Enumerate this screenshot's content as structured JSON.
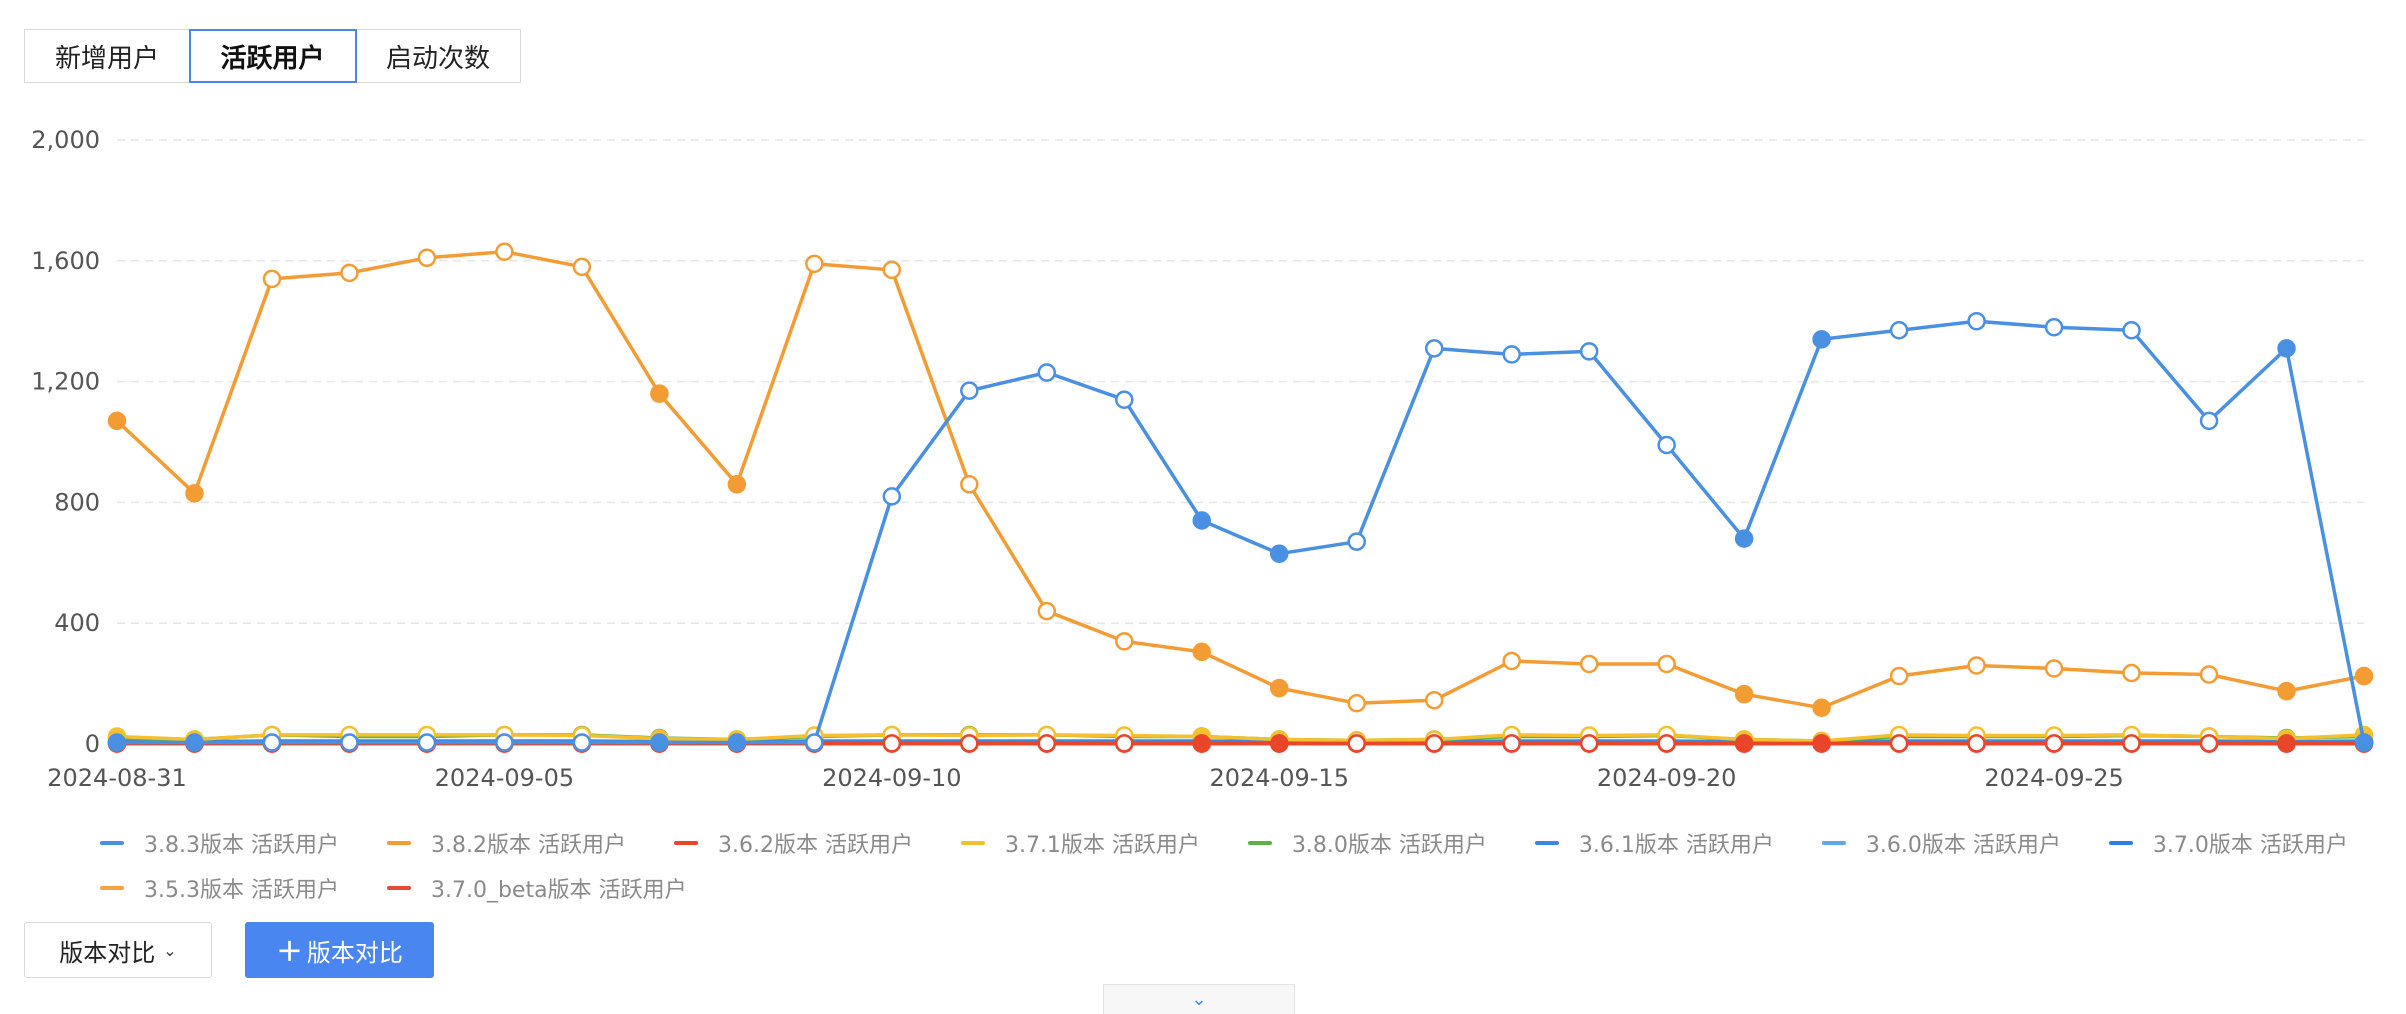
{
  "tabs": [
    {
      "label": "新增用户",
      "active": false
    },
    {
      "label": "活跃用户",
      "active": true
    },
    {
      "label": "启动次数",
      "active": false
    }
  ],
  "chart_data": {
    "type": "line",
    "ylim": [
      0,
      2000
    ],
    "yticks": [
      0,
      400,
      800,
      1200,
      1600,
      2000
    ],
    "ytick_labels": [
      "0",
      "400",
      "800",
      "1,200",
      "1,600",
      "2,000"
    ],
    "xtick_labels": [
      "2024-08-31",
      "2024-09-05",
      "2024-09-10",
      "2024-09-15",
      "2024-09-20",
      "2024-09-25"
    ],
    "xtick_indices": [
      0,
      5,
      10,
      15,
      20,
      25
    ],
    "grid": true,
    "legend_position": "bottom",
    "x": [
      "2024-08-31",
      "2024-09-01",
      "2024-09-02",
      "2024-09-03",
      "2024-09-04",
      "2024-09-05",
      "2024-09-06",
      "2024-09-07",
      "2024-09-08",
      "2024-09-09",
      "2024-09-10",
      "2024-09-11",
      "2024-09-12",
      "2024-09-13",
      "2024-09-14",
      "2024-09-15",
      "2024-09-16",
      "2024-09-17",
      "2024-09-18",
      "2024-09-19",
      "2024-09-20",
      "2024-09-21",
      "2024-09-22",
      "2024-09-23",
      "2024-09-24",
      "2024-09-25",
      "2024-09-26",
      "2024-09-27",
      "2024-09-28",
      "2024-09-29"
    ],
    "weekend_indices": [
      0,
      1,
      7,
      8,
      14,
      15,
      21,
      22,
      28,
      29
    ],
    "series": [
      {
        "name": "3.8.3版本 活跃用户",
        "color": "#4a90e2",
        "values": [
          5,
          5,
          5,
          5,
          5,
          5,
          5,
          5,
          5,
          5,
          820,
          1170,
          1230,
          1140,
          740,
          630,
          670,
          1310,
          1290,
          1300,
          990,
          680,
          1340,
          1370,
          1400,
          1380,
          1370,
          1070,
          1310,
          5
        ]
      },
      {
        "name": "3.8.2版本 活跃用户",
        "color": "#f39c34",
        "values": [
          1070,
          830,
          1540,
          1560,
          1610,
          1630,
          1580,
          1160,
          860,
          1590,
          1570,
          860,
          440,
          340,
          305,
          185,
          135,
          145,
          275,
          265,
          265,
          165,
          120,
          225,
          260,
          250,
          235,
          230,
          175,
          225
        ]
      },
      {
        "name": "3.6.2版本 活跃用户",
        "color": "#e8452b",
        "values": [
          2,
          2,
          2,
          2,
          2,
          2,
          2,
          2,
          2,
          2,
          2,
          2,
          2,
          2,
          2,
          2,
          2,
          2,
          2,
          2,
          2,
          2,
          2,
          2,
          2,
          2,
          2,
          2,
          2,
          2
        ]
      },
      {
        "name": "3.7.1版本 活跃用户",
        "color": "#f5c030",
        "values": [
          25,
          15,
          30,
          30,
          30,
          30,
          28,
          18,
          15,
          28,
          30,
          28,
          30,
          28,
          25,
          15,
          12,
          15,
          30,
          28,
          30,
          15,
          10,
          30,
          28,
          28,
          30,
          25,
          18,
          30
        ]
      },
      {
        "name": "3.8.0版本 活跃用户",
        "color": "#5cb345",
        "values": [
          20,
          15,
          30,
          25,
          25,
          30,
          30,
          20,
          15,
          25,
          30,
          30,
          30,
          25,
          25,
          15,
          12,
          15,
          25,
          25,
          28,
          15,
          10,
          25,
          25,
          25,
          28,
          25,
          20,
          25
        ]
      },
      {
        "name": "3.6.1版本 活跃用户",
        "color": "#3a86e0",
        "values": [
          10,
          8,
          10,
          10,
          10,
          10,
          10,
          8,
          8,
          10,
          10,
          10,
          10,
          10,
          10,
          8,
          8,
          8,
          10,
          10,
          10,
          8,
          8,
          10,
          10,
          10,
          10,
          10,
          8,
          10
        ]
      },
      {
        "name": "3.6.0版本 活跃用户",
        "color": "#5fa8e8",
        "values": [
          6,
          5,
          6,
          6,
          6,
          6,
          6,
          5,
          5,
          6,
          6,
          6,
          6,
          6,
          6,
          5,
          5,
          5,
          6,
          6,
          6,
          5,
          5,
          6,
          6,
          6,
          6,
          6,
          5,
          6
        ]
      },
      {
        "name": "3.7.0版本 活跃用户",
        "color": "#2f7de1",
        "values": [
          4,
          3,
          4,
          4,
          4,
          4,
          4,
          3,
          3,
          4,
          4,
          4,
          4,
          4,
          4,
          3,
          3,
          3,
          4,
          4,
          4,
          3,
          3,
          4,
          4,
          4,
          4,
          4,
          3,
          4
        ]
      },
      {
        "name": "3.5.3版本 活跃用户",
        "color": "#f5a443",
        "values": [
          3,
          3,
          3,
          3,
          3,
          3,
          3,
          3,
          3,
          3,
          3,
          3,
          3,
          3,
          3,
          3,
          3,
          3,
          3,
          3,
          3,
          3,
          3,
          3,
          3,
          3,
          3,
          3,
          3,
          3
        ]
      },
      {
        "name": "3.7.0_beta版本 活跃用户",
        "color": "#e84a3a",
        "values": [
          1,
          1,
          1,
          1,
          1,
          1,
          1,
          1,
          1,
          1,
          1,
          1,
          1,
          1,
          1,
          1,
          1,
          1,
          1,
          1,
          1,
          1,
          1,
          1,
          1,
          1,
          1,
          1,
          1,
          1
        ]
      }
    ]
  },
  "controls": {
    "compare_label": "版本对比",
    "add_compare_label": "版本对比",
    "add_icon": "plus-icon",
    "expand_icon": "chevron-down-icon"
  }
}
